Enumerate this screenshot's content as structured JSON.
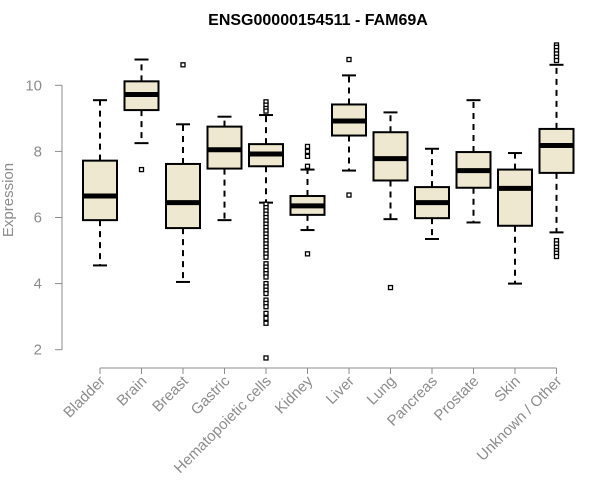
{
  "chart_data": {
    "type": "box",
    "title": "ENSG00000154511 - FAM69A",
    "xlabel": "",
    "ylabel": "Expression",
    "ylim": [
      1.6,
      11.3
    ],
    "yticks": [
      2,
      4,
      6,
      8,
      10
    ],
    "grid": false,
    "legend": "none",
    "colors": {
      "box_fill": "#efe8d0",
      "box_stroke": "#000000",
      "axis": "#8c8c8c"
    },
    "categories": [
      "Bladder",
      "Brain",
      "Breast",
      "Gastric",
      "Hematopoietic cells",
      "Kidney",
      "Liver",
      "Lung",
      "Pancreas",
      "Prostate",
      "Skin",
      "Unknown / Other"
    ],
    "boxes": [
      {
        "label": "Bladder",
        "whisker_low": 4.55,
        "q1": 5.92,
        "median": 6.65,
        "q3": 7.72,
        "whisker_high": 9.55,
        "outliers": []
      },
      {
        "label": "Brain",
        "whisker_low": 8.25,
        "q1": 9.25,
        "median": 9.72,
        "q3": 10.12,
        "whisker_high": 10.78,
        "outliers": [
          7.45
        ]
      },
      {
        "label": "Breast",
        "whisker_low": 4.05,
        "q1": 5.68,
        "median": 6.45,
        "q3": 7.62,
        "whisker_high": 8.82,
        "outliers": [
          10.62
        ]
      },
      {
        "label": "Gastric",
        "whisker_low": 5.92,
        "q1": 7.48,
        "median": 8.05,
        "q3": 8.75,
        "whisker_high": 9.05,
        "outliers": []
      },
      {
        "label": "Hematopoietic cells",
        "whisker_low": 6.45,
        "q1": 7.55,
        "median": 7.92,
        "q3": 8.22,
        "whisker_high": 9.1,
        "outliers": [
          9.5,
          9.4,
          9.3,
          9.22,
          6.4,
          6.3,
          6.2,
          6.1,
          6.0,
          5.9,
          5.8,
          5.7,
          5.6,
          5.5,
          5.4,
          5.3,
          5.2,
          5.1,
          5.0,
          4.9,
          4.8,
          4.6,
          4.5,
          4.4,
          4.3,
          4.2,
          4.0,
          3.9,
          3.8,
          3.7,
          3.5,
          3.4,
          3.3,
          3.1,
          2.95,
          2.8,
          1.75
        ]
      },
      {
        "label": "Kidney",
        "whisker_low": 5.62,
        "q1": 6.08,
        "median": 6.35,
        "q3": 6.65,
        "whisker_high": 7.45,
        "outliers": [
          8.15,
          8.0,
          7.85,
          7.55,
          4.9
        ]
      },
      {
        "label": "Liver",
        "whisker_low": 7.42,
        "q1": 8.48,
        "median": 8.92,
        "q3": 9.42,
        "whisker_high": 10.3,
        "outliers": [
          10.78,
          6.68
        ]
      },
      {
        "label": "Lung",
        "whisker_low": 5.95,
        "q1": 7.12,
        "median": 7.78,
        "q3": 8.58,
        "whisker_high": 9.18,
        "outliers": [
          3.88
        ]
      },
      {
        "label": "Pancreas",
        "whisker_low": 5.35,
        "q1": 5.98,
        "median": 6.45,
        "q3": 6.92,
        "whisker_high": 8.08,
        "outliers": []
      },
      {
        "label": "Prostate",
        "whisker_low": 5.85,
        "q1": 6.9,
        "median": 7.42,
        "q3": 7.98,
        "whisker_high": 9.55,
        "outliers": []
      },
      {
        "label": "Skin",
        "whisker_low": 4.0,
        "q1": 5.75,
        "median": 6.88,
        "q3": 7.45,
        "whisker_high": 7.95,
        "outliers": []
      },
      {
        "label": "Unknown / Other",
        "whisker_low": 5.55,
        "q1": 7.35,
        "median": 8.18,
        "q3": 8.68,
        "whisker_high": 10.62,
        "outliers": [
          11.22,
          11.15,
          11.05,
          10.95,
          10.85,
          10.75,
          5.3,
          5.2,
          5.1,
          5.0,
          4.92,
          4.82
        ]
      }
    ]
  }
}
